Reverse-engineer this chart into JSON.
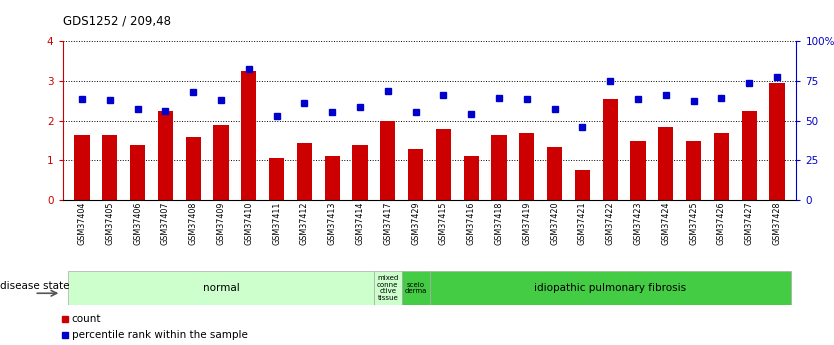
{
  "title": "GDS1252 / 209,48",
  "samples": [
    "GSM37404",
    "GSM37405",
    "GSM37406",
    "GSM37407",
    "GSM37408",
    "GSM37409",
    "GSM37410",
    "GSM37411",
    "GSM37412",
    "GSM37413",
    "GSM37414",
    "GSM37417",
    "GSM37429",
    "GSM37415",
    "GSM37416",
    "GSM37418",
    "GSM37419",
    "GSM37420",
    "GSM37421",
    "GSM37422",
    "GSM37423",
    "GSM37424",
    "GSM37425",
    "GSM37426",
    "GSM37427",
    "GSM37428"
  ],
  "counts": [
    1.65,
    1.65,
    1.4,
    2.25,
    1.6,
    1.9,
    3.25,
    1.05,
    1.45,
    1.1,
    1.4,
    2.0,
    1.3,
    1.8,
    1.1,
    1.65,
    1.7,
    1.35,
    0.75,
    2.55,
    1.5,
    1.85,
    1.5,
    1.7,
    2.25,
    2.95
  ],
  "percentiles": [
    2.55,
    2.52,
    2.3,
    2.25,
    2.72,
    2.52,
    3.3,
    2.12,
    2.45,
    2.22,
    2.35,
    2.75,
    2.22,
    2.65,
    2.18,
    2.58,
    2.55,
    2.3,
    1.85,
    3.0,
    2.55,
    2.65,
    2.5,
    2.58,
    2.95,
    3.1
  ],
  "bar_color": "#cc0000",
  "dot_color": "#0000cc",
  "ylim_left": [
    0,
    4
  ],
  "ylim_right": [
    0,
    100
  ],
  "yticks_left": [
    0,
    1,
    2,
    3,
    4
  ],
  "yticks_right": [
    0,
    25,
    50,
    75,
    100
  ],
  "groups": [
    {
      "label": "normal",
      "start": 0,
      "end": 11,
      "color": "#ccffcc"
    },
    {
      "label": "mixed\nconne\nctive\ntissue",
      "start": 11,
      "end": 12,
      "color": "#ccffcc"
    },
    {
      "label": "scelo\nderma",
      "start": 12,
      "end": 13,
      "color": "#44cc44"
    },
    {
      "label": "idiopathic pulmonary fibrosis",
      "start": 13,
      "end": 26,
      "color": "#44cc44"
    }
  ],
  "disease_state_label": "disease state",
  "bg_color": "#ffffff",
  "left_axis_color": "#cc0000",
  "right_axis_color": "#0000cc"
}
